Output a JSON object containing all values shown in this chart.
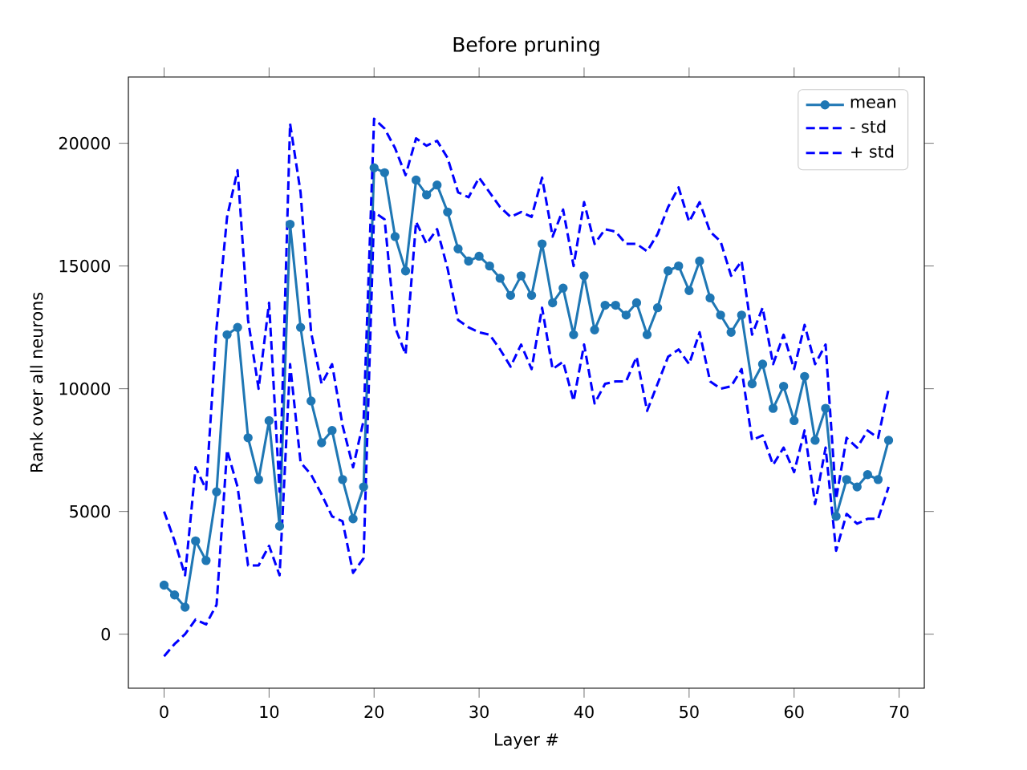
{
  "chart_data": {
    "type": "line",
    "title": "Before pruning",
    "xlabel": "Layer #",
    "ylabel": "Rank over all neurons",
    "x": [
      0,
      1,
      2,
      3,
      4,
      5,
      6,
      7,
      8,
      9,
      10,
      11,
      12,
      13,
      14,
      15,
      16,
      17,
      18,
      19,
      20,
      21,
      22,
      23,
      24,
      25,
      26,
      27,
      28,
      29,
      30,
      31,
      32,
      33,
      34,
      35,
      36,
      37,
      38,
      39,
      40,
      41,
      42,
      43,
      44,
      45,
      46,
      47,
      48,
      49,
      50,
      51,
      52,
      53,
      54,
      55,
      56,
      57,
      58,
      59,
      60,
      61,
      62,
      63,
      64,
      65,
      66,
      67,
      68,
      69
    ],
    "series": [
      {
        "name": "mean",
        "color": "#1f77b4",
        "marker": "circle",
        "line_style": "solid",
        "values": [
          2000,
          1600,
          1100,
          3800,
          3000,
          5800,
          12200,
          12500,
          8000,
          6300,
          8700,
          4400,
          16700,
          12500,
          9500,
          7800,
          8300,
          6300,
          4700,
          6000,
          19000,
          18800,
          16200,
          14800,
          18500,
          17900,
          18300,
          17200,
          15700,
          15200,
          15400,
          15000,
          14500,
          13800,
          14600,
          13800,
          15900,
          13500,
          14100,
          12200,
          14600,
          12400,
          13400,
          13400,
          13000,
          13500,
          12200,
          13300,
          14800,
          15000,
          14000,
          15200,
          13700,
          13000,
          12300,
          13000,
          10200,
          11000,
          9200,
          10100,
          8700,
          10500,
          7900,
          9200,
          4800,
          6300,
          6000,
          6500,
          6300,
          7900
        ]
      },
      {
        "name": "- std",
        "color": "#0000ff",
        "marker": "none",
        "line_style": "dashed",
        "values": [
          -900,
          -400,
          0,
          600,
          400,
          1200,
          7500,
          6000,
          2800,
          2800,
          3600,
          2400,
          11000,
          7000,
          6500,
          5700,
          4800,
          4600,
          2500,
          3100,
          17200,
          16900,
          12500,
          11400,
          16800,
          15900,
          16500,
          14900,
          12800,
          12500,
          12300,
          12200,
          11600,
          10900,
          11800,
          10800,
          13300,
          10800,
          11100,
          9500,
          11800,
          9400,
          10200,
          10300,
          10300,
          11300,
          9100,
          10200,
          11300,
          11600,
          11000,
          12300,
          10300,
          10000,
          10100,
          10800,
          7900,
          8100,
          6900,
          7600,
          6600,
          8300,
          5300,
          7600,
          3400,
          4900,
          4500,
          4700,
          4700,
          6000
        ]
      },
      {
        "name": "+ std",
        "color": "#0000ff",
        "marker": "none",
        "line_style": "dashed",
        "values": [
          5000,
          3800,
          2400,
          6800,
          5900,
          12500,
          17000,
          18900,
          12800,
          10000,
          13500,
          5800,
          20800,
          18000,
          12300,
          10200,
          11000,
          8500,
          6800,
          8700,
          21000,
          20600,
          19800,
          18700,
          20200,
          19900,
          20100,
          19400,
          18000,
          17800,
          18600,
          18000,
          17400,
          17000,
          17200,
          17000,
          18600,
          16200,
          17300,
          15000,
          17600,
          15900,
          16500,
          16400,
          15900,
          15900,
          15600,
          16300,
          17400,
          18200,
          16800,
          17600,
          16400,
          16000,
          14600,
          15200,
          12200,
          13300,
          11000,
          12200,
          10800,
          12600,
          11000,
          11800,
          5500,
          8000,
          7600,
          8300,
          8000,
          10000
        ]
      }
    ],
    "xlim": [
      -3.4,
      72.4
    ],
    "ylim": [
      -2200,
      22700
    ],
    "xticks": [
      0,
      10,
      20,
      30,
      40,
      50,
      60,
      70
    ],
    "yticks": [
      0,
      5000,
      10000,
      15000,
      20000
    ],
    "grid": false,
    "legend": "top right"
  }
}
